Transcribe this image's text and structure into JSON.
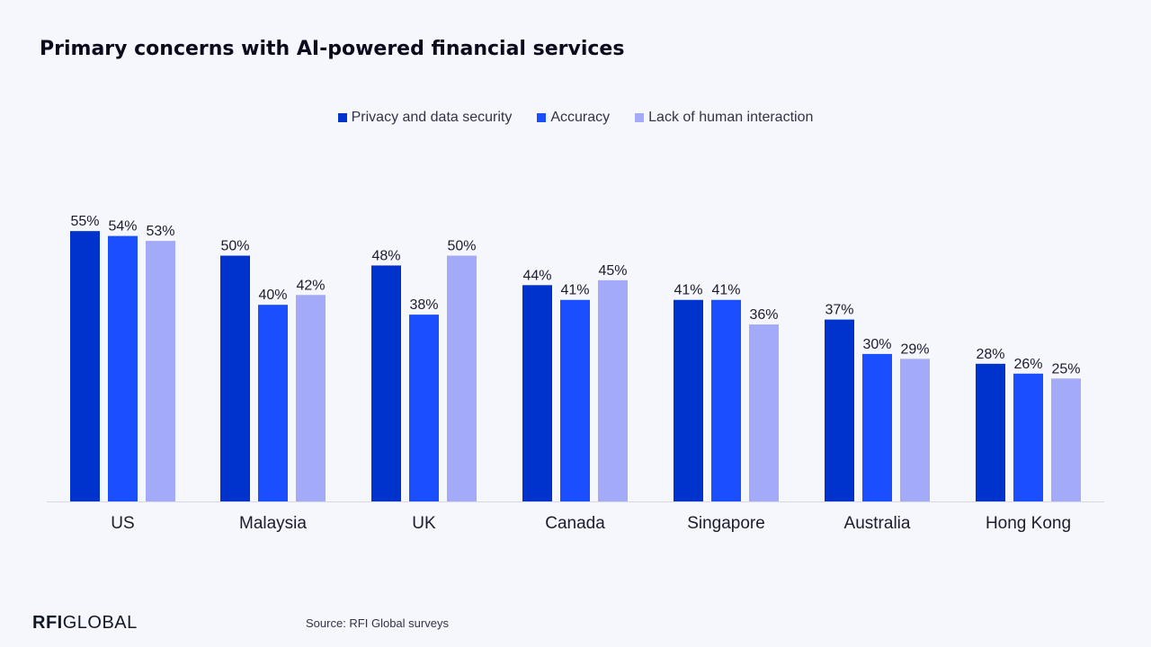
{
  "chart_data": {
    "type": "bar",
    "title": "Primary concerns with AI-powered financial services",
    "categories": [
      "US",
      "Malaysia",
      "UK",
      "Canada",
      "Singapore",
      "Australia",
      "Hong Kong"
    ],
    "series": [
      {
        "name": "Privacy and data security",
        "color": "#0033cc",
        "values": [
          55,
          50,
          48,
          44,
          41,
          37,
          28
        ]
      },
      {
        "name": "Accuracy",
        "color": "#1a4fff",
        "values": [
          54,
          40,
          38,
          41,
          41,
          30,
          26
        ]
      },
      {
        "name": "Lack of human interaction",
        "color": "#a3aaf7",
        "values": [
          53,
          42,
          50,
          45,
          36,
          29,
          25
        ]
      }
    ],
    "value_suffix": "%",
    "ylim": [
      0,
      60
    ],
    "grid": false,
    "legend_position": "top-center"
  },
  "footer": {
    "logo_bold": "RFI",
    "logo_rest": "GLOBAL",
    "source": "Source: RFI Global surveys"
  }
}
